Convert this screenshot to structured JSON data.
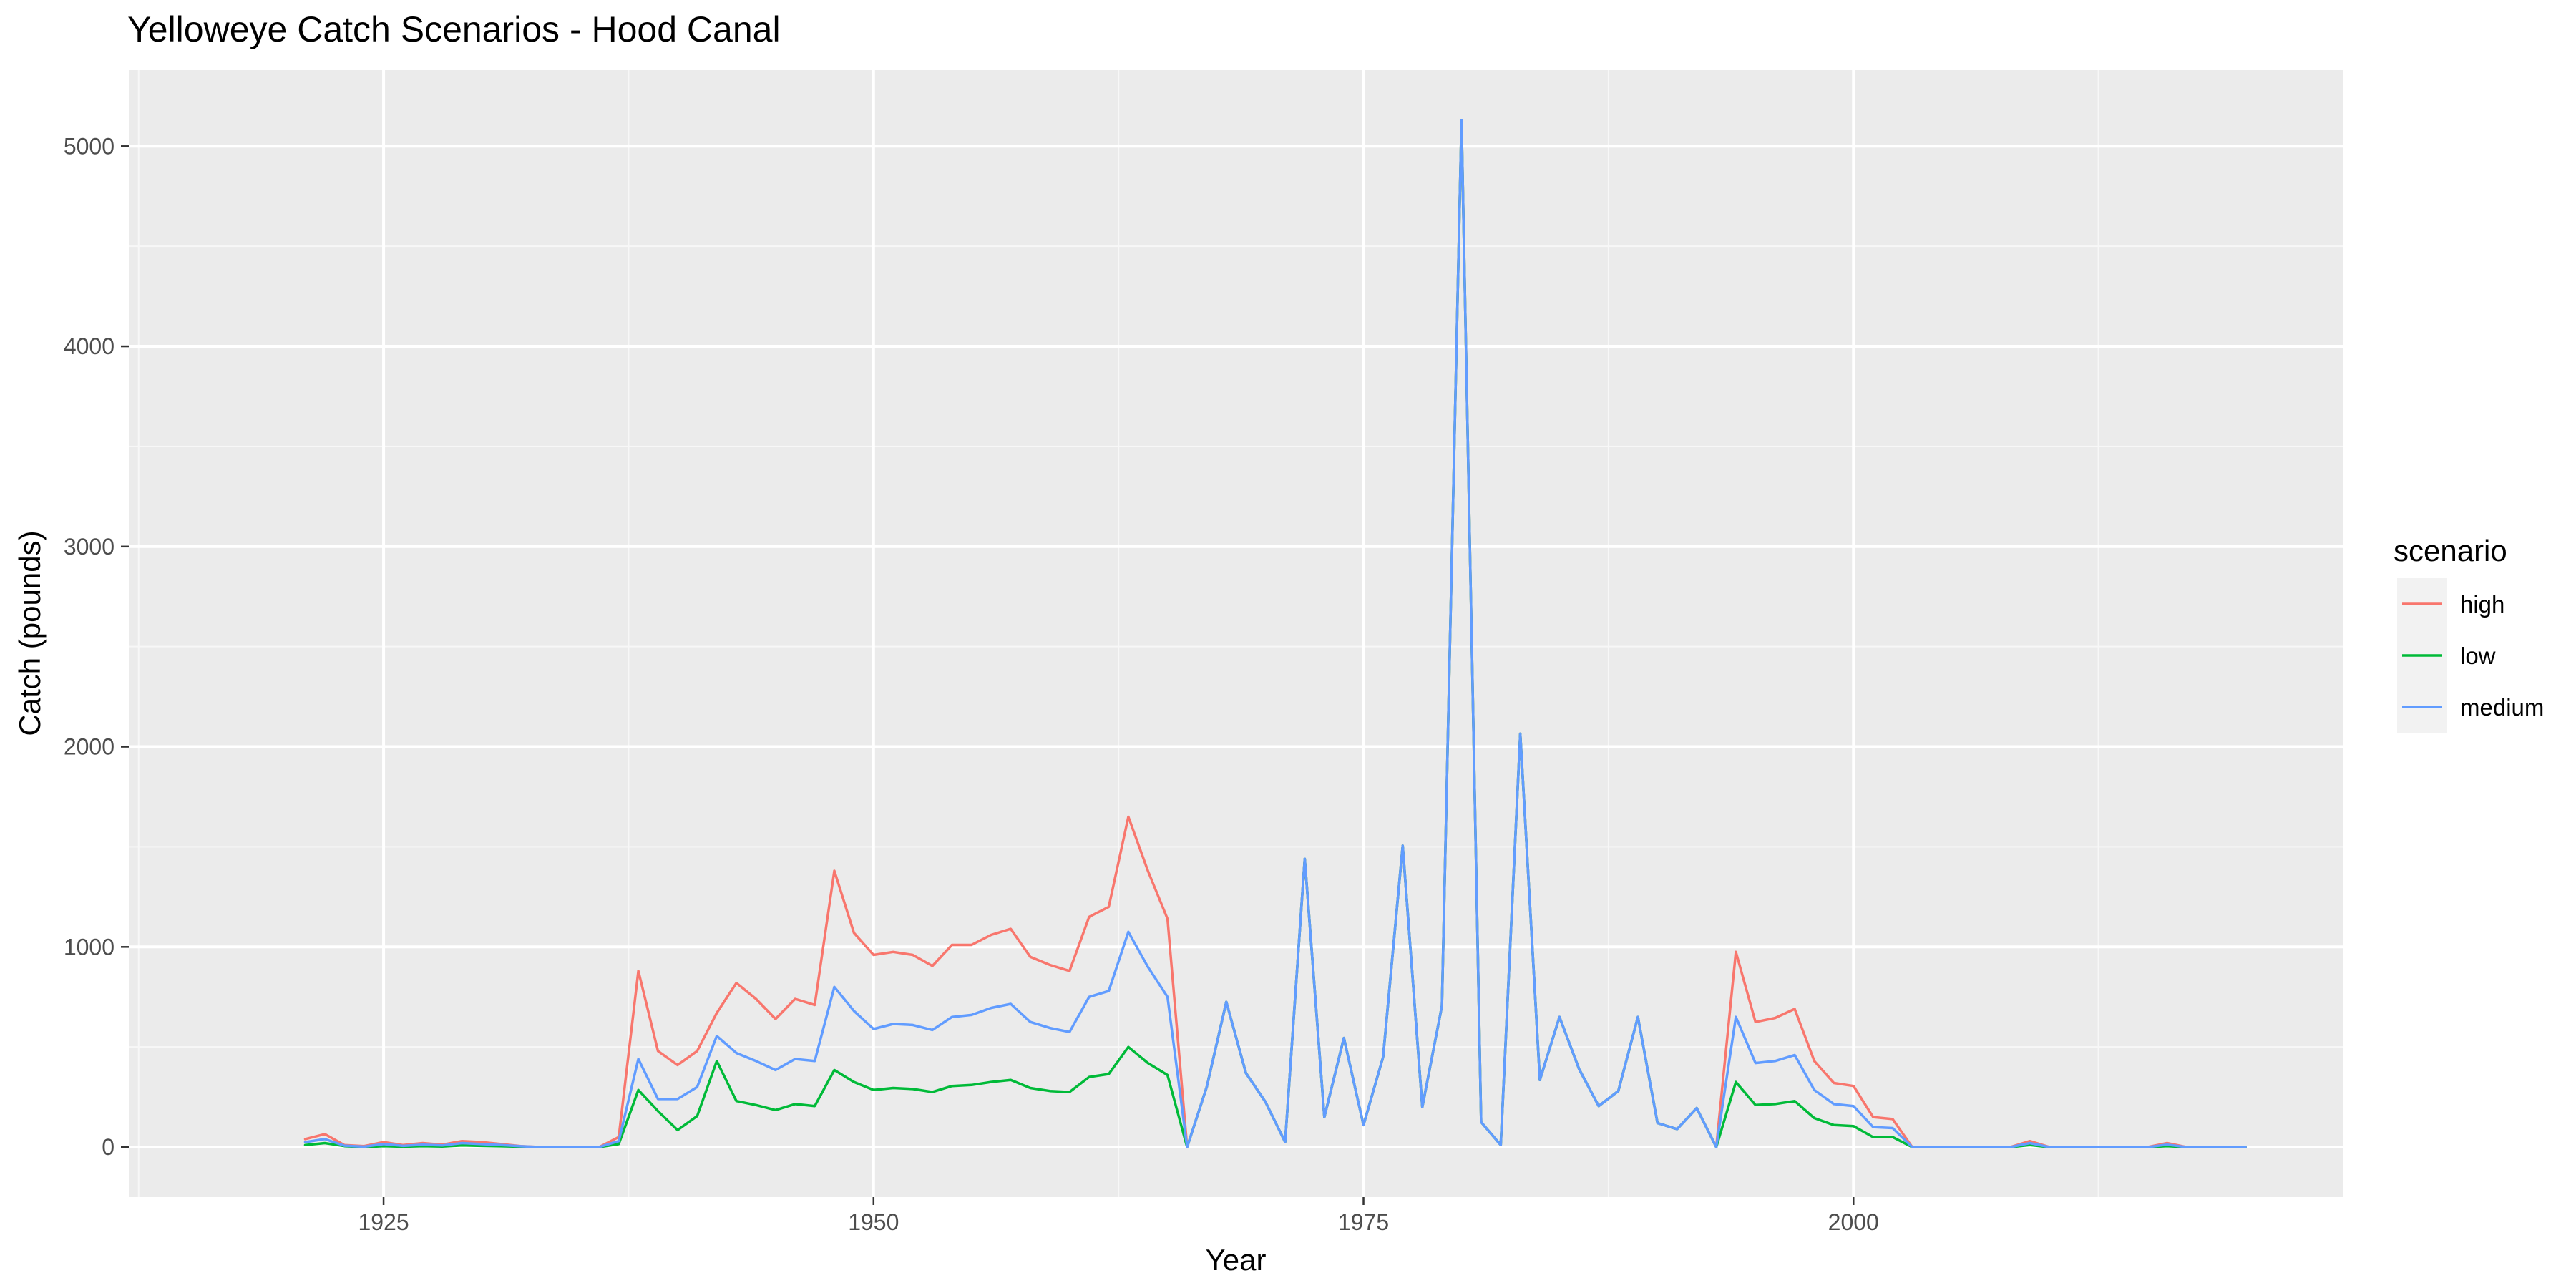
{
  "chart_data": {
    "type": "line",
    "title": "Yelloweye Catch Scenarios - Hood Canal",
    "xlabel": "Year",
    "ylabel": "Catch (pounds)",
    "xlim": [
      1912,
      2025
    ],
    "ylim": [
      -250,
      5380
    ],
    "x_ticks": [
      1925,
      1950,
      1975,
      2000
    ],
    "y_ticks": [
      0,
      1000,
      2000,
      3000,
      4000,
      5000
    ],
    "grid": true,
    "legend": {
      "title": "scenario",
      "position": "right"
    },
    "x": [
      1921,
      1922,
      1923,
      1924,
      1925,
      1926,
      1927,
      1928,
      1929,
      1930,
      1931,
      1932,
      1933,
      1934,
      1935,
      1936,
      1937,
      1938,
      1939,
      1940,
      1941,
      1942,
      1943,
      1944,
      1945,
      1946,
      1947,
      1948,
      1949,
      1950,
      1951,
      1952,
      1953,
      1954,
      1955,
      1956,
      1957,
      1958,
      1959,
      1960,
      1961,
      1962,
      1963,
      1964,
      1965,
      1966,
      1967,
      1968,
      1969,
      1970,
      1971,
      1972,
      1973,
      1974,
      1975,
      1976,
      1977,
      1978,
      1979,
      1980,
      1981,
      1982,
      1983,
      1984,
      1985,
      1986,
      1987,
      1988,
      1989,
      1990,
      1991,
      1992,
      1993,
      1994,
      1995,
      1996,
      1997,
      1998,
      1999,
      2000,
      2001,
      2002,
      2003,
      2004,
      2005,
      2006,
      2007,
      2008,
      2009,
      2010,
      2011,
      2012,
      2013,
      2014,
      2015,
      2016,
      2017,
      2018,
      2019,
      2020
    ],
    "series": [
      {
        "name": "high",
        "color": "#F8766D",
        "values": [
          40,
          65,
          10,
          5,
          25,
          10,
          20,
          12,
          30,
          25,
          15,
          5,
          0,
          0,
          0,
          0,
          50,
          880,
          480,
          410,
          480,
          670,
          820,
          740,
          640,
          740,
          710,
          1380,
          1070,
          960,
          975,
          960,
          905,
          1010,
          1010,
          1060,
          1090,
          950,
          910,
          880,
          1150,
          1200,
          1650,
          1380,
          1140,
          0,
          300,
          725,
          370,
          225,
          25,
          1440,
          150,
          545,
          110,
          450,
          1505,
          200,
          705,
          5130,
          125,
          10,
          2065,
          335,
          650,
          390,
          205,
          280,
          650,
          120,
          90,
          195,
          0,
          975,
          625,
          645,
          690,
          430,
          320,
          305,
          150,
          140,
          0,
          0,
          0,
          0,
          0,
          0,
          30,
          0,
          0,
          0,
          0,
          0,
          0,
          20,
          0,
          0,
          0,
          0
        ]
      },
      {
        "name": "low",
        "color": "#00BA38",
        "values": [
          10,
          20,
          5,
          0,
          5,
          2,
          5,
          3,
          8,
          6,
          4,
          2,
          0,
          0,
          0,
          0,
          15,
          285,
          180,
          85,
          155,
          430,
          230,
          210,
          185,
          215,
          205,
          385,
          325,
          285,
          295,
          290,
          275,
          305,
          310,
          325,
          335,
          295,
          280,
          275,
          350,
          365,
          500,
          420,
          360,
          0,
          300,
          725,
          370,
          225,
          25,
          1440,
          150,
          545,
          110,
          450,
          1505,
          200,
          705,
          5130,
          125,
          10,
          2065,
          335,
          650,
          390,
          205,
          280,
          650,
          120,
          90,
          195,
          0,
          325,
          210,
          215,
          230,
          145,
          110,
          105,
          50,
          50,
          0,
          0,
          0,
          0,
          0,
          0,
          10,
          0,
          0,
          0,
          0,
          0,
          0,
          5,
          0,
          0,
          0,
          0
        ]
      },
      {
        "name": "medium",
        "color": "#619CFF",
        "values": [
          25,
          40,
          7,
          2,
          15,
          6,
          12,
          8,
          20,
          15,
          10,
          4,
          0,
          0,
          0,
          0,
          30,
          440,
          240,
          240,
          300,
          555,
          470,
          430,
          385,
          440,
          430,
          800,
          680,
          590,
          615,
          610,
          585,
          650,
          660,
          695,
          715,
          625,
          595,
          575,
          750,
          780,
          1075,
          900,
          750,
          0,
          300,
          725,
          370,
          225,
          25,
          1440,
          150,
          545,
          110,
          450,
          1505,
          200,
          705,
          5130,
          125,
          10,
          2065,
          335,
          650,
          390,
          205,
          280,
          650,
          120,
          90,
          195,
          0,
          650,
          420,
          430,
          460,
          285,
          215,
          205,
          100,
          95,
          0,
          0,
          0,
          0,
          0,
          0,
          20,
          0,
          0,
          0,
          0,
          0,
          0,
          12,
          0,
          0,
          0,
          0
        ]
      }
    ]
  }
}
